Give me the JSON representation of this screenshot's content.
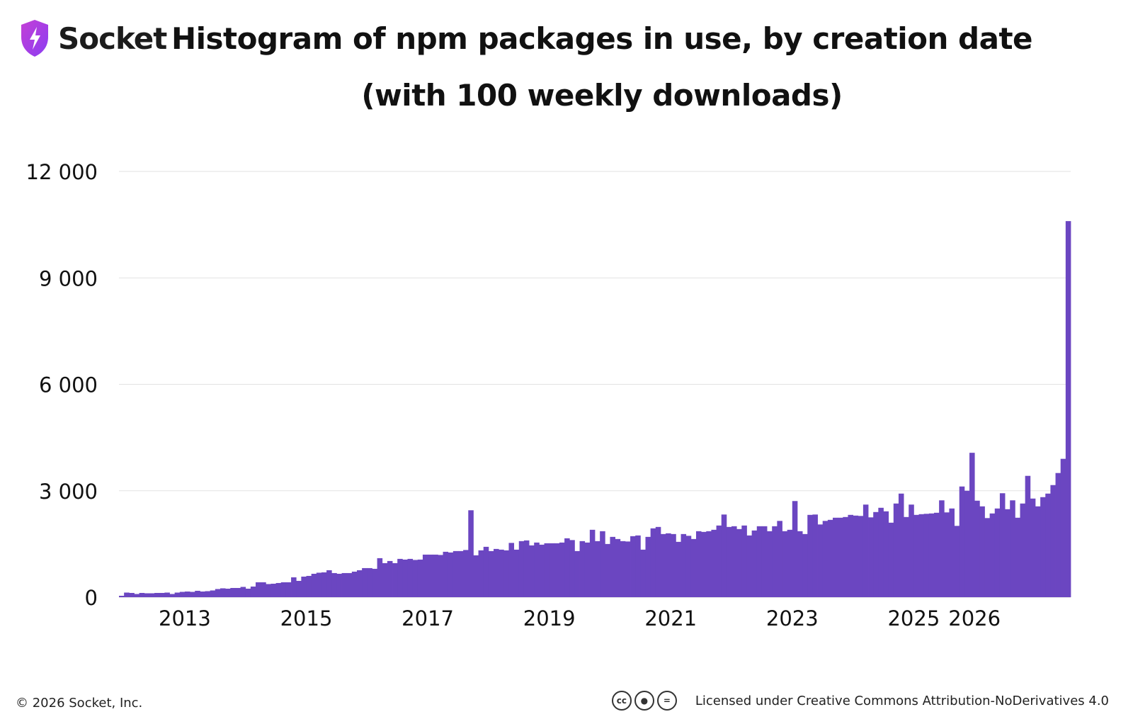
{
  "brand": {
    "name": "Socket",
    "logo_icon": "shield-bolt-icon",
    "logo_gradient": [
      "#c43fd6",
      "#8b3ef2"
    ]
  },
  "title": {
    "line1": "Histogram of npm packages in use, by creation date",
    "line2": "(with 100 weekly downloads)"
  },
  "footer": {
    "copyright": "© 2026 Socket, Inc.",
    "license": "Licensed under Creative Commons Attribution-NoDerivatives 4.0",
    "license_icons": [
      "cc-icon",
      "attribution-icon",
      "no-derivatives-icon"
    ]
  },
  "chart_data": {
    "type": "bar",
    "bar_color": "#6b46c1",
    "x_tick_labels": [
      "2013",
      "2015",
      "2017",
      "2019",
      "2021",
      "2023",
      "2025",
      "2026"
    ],
    "x_tick_positions": [
      2013,
      2015,
      2017,
      2019,
      2021,
      2023,
      2025,
      2026
    ],
    "y_tick_labels": [
      "0",
      "3 000",
      "6 000",
      "9 000",
      "12 000"
    ],
    "y_tick_values": [
      0,
      3000,
      6000,
      9000,
      12000
    ],
    "ylim": [
      0,
      12000
    ],
    "grid": "horizontal",
    "x_start": "2011-12",
    "interval": "month",
    "values": [
      40,
      130,
      120,
      90,
      120,
      110,
      110,
      120,
      120,
      130,
      90,
      130,
      150,
      160,
      150,
      180,
      160,
      170,
      190,
      230,
      250,
      240,
      260,
      260,
      290,
      240,
      300,
      420,
      420,
      370,
      380,
      400,
      420,
      420,
      560,
      460,
      580,
      600,
      660,
      690,
      700,
      760,
      680,
      660,
      680,
      680,
      720,
      760,
      820,
      820,
      800,
      1100,
      960,
      1020,
      960,
      1080,
      1060,
      1080,
      1050,
      1060,
      1200,
      1200,
      1200,
      1190,
      1280,
      1260,
      1300,
      1300,
      1330,
      2450,
      1180,
      1320,
      1420,
      1300,
      1360,
      1340,
      1320,
      1530,
      1340,
      1580,
      1600,
      1460,
      1540,
      1480,
      1520,
      1520,
      1520,
      1540,
      1660,
      1610,
      1300,
      1580,
      1540,
      1900,
      1580,
      1860,
      1500,
      1700,
      1640,
      1580,
      1570,
      1720,
      1740,
      1340,
      1700,
      1940,
      1980,
      1780,
      1800,
      1780,
      1560,
      1780,
      1730,
      1640,
      1860,
      1840,
      1860,
      1900,
      2020,
      2330,
      1980,
      2000,
      1920,
      2020,
      1740,
      1880,
      2000,
      2000,
      1860,
      2000,
      2150,
      1860,
      1900,
      2710,
      1860,
      1780,
      2320,
      2330,
      2050,
      2150,
      2180,
      2240,
      2240,
      2260,
      2320,
      2300,
      2290,
      2610,
      2250,
      2400,
      2520,
      2420,
      2100,
      2640,
      2920,
      2260,
      2610,
      2320,
      2340,
      2350,
      2360,
      2380,
      2730,
      2390,
      2500,
      2010,
      3120,
      3000,
      4070,
      2720,
      2560,
      2230,
      2360,
      2500,
      2930,
      2480,
      2730,
      2240,
      2640,
      3420,
      2780,
      2560,
      2820,
      2920,
      3160,
      3500,
      3900,
      10600
    ]
  }
}
